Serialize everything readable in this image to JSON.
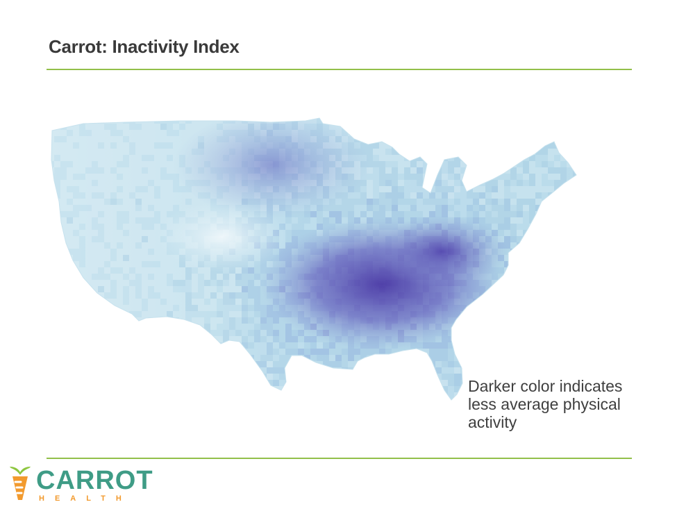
{
  "slide": {
    "title": "Carrot: Inactivity Index"
  },
  "map": {
    "subject": "United States county-level inactivity",
    "legend_direction": "darker = less average physical activity",
    "color_scale": {
      "low": "#d6ecf3",
      "mid": "#a9cfe3",
      "high": "#4f3fa8"
    },
    "caption_lines": [
      "Darker color indicates",
      "less average physical",
      "activity"
    ]
  },
  "logo": {
    "word": "CARROT",
    "sub": "HEALTH",
    "colors": {
      "word": "#3f9c86",
      "sub": "#f29a2e",
      "leaf": "#8dc63f",
      "carrot": "#f29a2e"
    }
  },
  "accent_color": "#92c04a"
}
